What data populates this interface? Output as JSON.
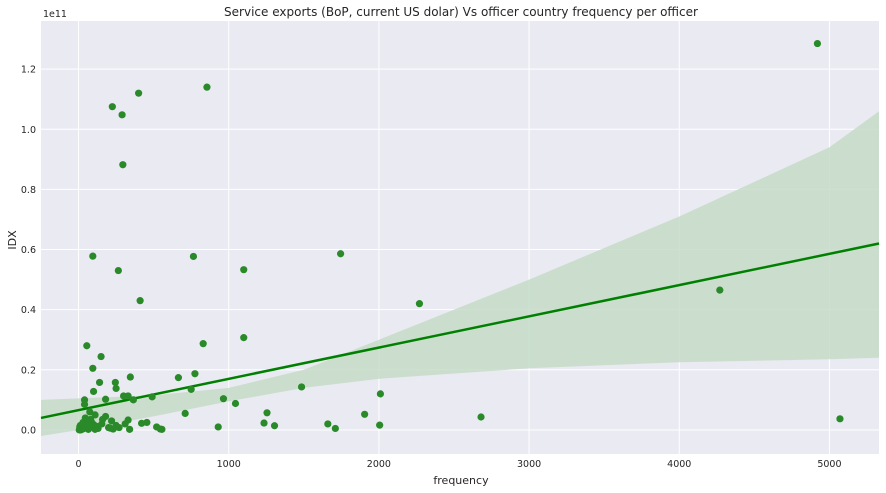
{
  "chart_data": {
    "type": "scatter",
    "title": "Service exports (BoP, current US dolar) Vs officer country frequency per officer",
    "xlabel": "frequency",
    "ylabel": "IDX",
    "y_offset_label": "1e11",
    "xlim": [
      -250,
      5330
    ],
    "ylim": [
      -0.08,
      1.36
    ],
    "x_ticks": [
      0,
      1000,
      2000,
      3000,
      4000,
      5000
    ],
    "x_tick_labels": [
      "0",
      "1000",
      "2000",
      "3000",
      "4000",
      "5000"
    ],
    "y_ticks": [
      0.0,
      0.2,
      0.4,
      0.6,
      0.8,
      1.0,
      1.2
    ],
    "y_tick_labels": [
      "0.0",
      "0.2",
      "0.4",
      "0.6",
      "0.8",
      "1.0",
      "1.2"
    ],
    "grid": true,
    "background": "#eaeaf2",
    "point_color": "#2a8a2a",
    "line_color": "#008000",
    "band_color": "#c5dcc8",
    "regression": {
      "x": [
        -250,
        5330
      ],
      "y": [
        0.04,
        0.62
      ]
    },
    "confidence_band": {
      "x": [
        -250,
        0,
        500,
        1000,
        1500,
        2000,
        3000,
        4000,
        5000,
        5330
      ],
      "upper": [
        0.1,
        0.105,
        0.115,
        0.14,
        0.2,
        0.3,
        0.5,
        0.71,
        0.94,
        1.06
      ],
      "lower": [
        -0.02,
        0.0,
        0.045,
        0.095,
        0.14,
        0.17,
        0.205,
        0.225,
        0.235,
        0.24
      ]
    },
    "points": [
      [
        4920,
        1.285
      ],
      [
        855,
        1.14
      ],
      [
        400,
        1.12
      ],
      [
        225,
        1.075
      ],
      [
        290,
        1.048
      ],
      [
        295,
        0.882
      ],
      [
        95,
        0.578
      ],
      [
        765,
        0.577
      ],
      [
        1745,
        0.586
      ],
      [
        265,
        0.53
      ],
      [
        1100,
        0.533
      ],
      [
        410,
        0.43
      ],
      [
        2270,
        0.42
      ],
      [
        4270,
        0.465
      ],
      [
        55,
        0.28
      ],
      [
        830,
        0.287
      ],
      [
        1100,
        0.307
      ],
      [
        150,
        0.244
      ],
      [
        95,
        0.205
      ],
      [
        775,
        0.187
      ],
      [
        665,
        0.174
      ],
      [
        345,
        0.176
      ],
      [
        245,
        0.158
      ],
      [
        140,
        0.158
      ],
      [
        1485,
        0.143
      ],
      [
        750,
        0.135
      ],
      [
        100,
        0.128
      ],
      [
        250,
        0.138
      ],
      [
        300,
        0.113
      ],
      [
        330,
        0.113
      ],
      [
        490,
        0.11
      ],
      [
        2010,
        0.12
      ],
      [
        965,
        0.104
      ],
      [
        365,
        0.1
      ],
      [
        180,
        0.102
      ],
      [
        40,
        0.1
      ],
      [
        40,
        0.085
      ],
      [
        1045,
        0.088
      ],
      [
        1905,
        0.052
      ],
      [
        710,
        0.055
      ],
      [
        1255,
        0.057
      ],
      [
        75,
        0.06
      ],
      [
        110,
        0.05
      ],
      [
        160,
        0.035
      ],
      [
        180,
        0.045
      ],
      [
        220,
        0.03
      ],
      [
        330,
        0.033
      ],
      [
        420,
        0.022
      ],
      [
        455,
        0.025
      ],
      [
        1235,
        0.023
      ],
      [
        1660,
        0.02
      ],
      [
        2680,
        0.043
      ],
      [
        5070,
        0.037
      ],
      [
        1305,
        0.014
      ],
      [
        2005,
        0.016
      ],
      [
        930,
        0.01
      ],
      [
        1710,
        0.005
      ],
      [
        520,
        0.01
      ],
      [
        545,
        0.003
      ],
      [
        555,
        0.002
      ],
      [
        340,
        0.002
      ],
      [
        250,
        0.015
      ],
      [
        230,
        0.003
      ],
      [
        200,
        0.008
      ],
      [
        130,
        0.005
      ],
      [
        100,
        0.018
      ],
      [
        80,
        0.035
      ],
      [
        60,
        0.022
      ],
      [
        45,
        0.04
      ],
      [
        35,
        0.012
      ],
      [
        30,
        0.025
      ],
      [
        25,
        0.006
      ],
      [
        20,
        0.002
      ],
      [
        15,
        0.0
      ],
      [
        10,
        0.004
      ],
      [
        8,
        0.01
      ],
      [
        5,
        0.0
      ],
      [
        12,
        0.015
      ],
      [
        28,
        0.003
      ],
      [
        50,
        0.008
      ],
      [
        65,
        0.002
      ],
      [
        90,
        0.01
      ],
      [
        110,
        0.002
      ],
      [
        70,
        0.015
      ],
      [
        85,
        0.028
      ],
      [
        120,
        0.012
      ],
      [
        155,
        0.02
      ],
      [
        210,
        0.006
      ],
      [
        270,
        0.008
      ],
      [
        310,
        0.02
      ]
    ]
  }
}
